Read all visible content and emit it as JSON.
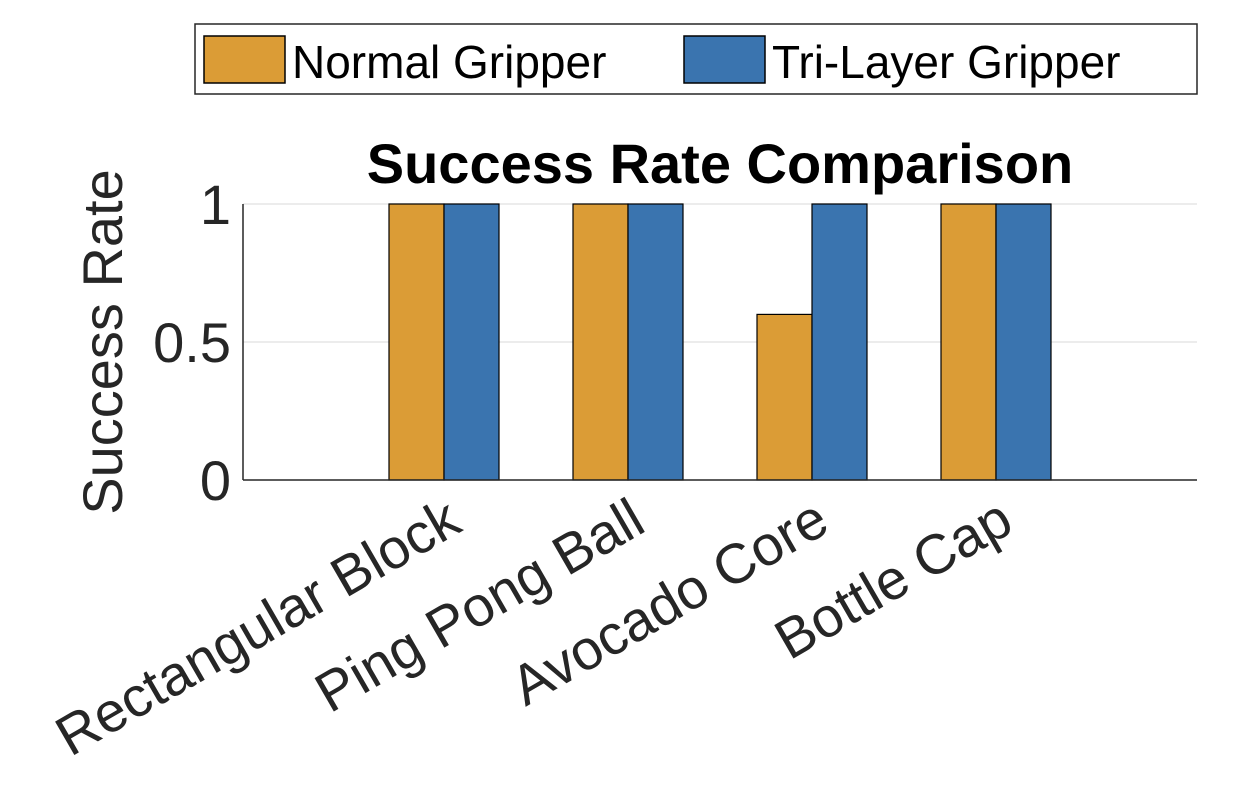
{
  "chart_data": {
    "type": "bar",
    "title": "Success Rate Comparison",
    "xlabel": "",
    "ylabel": "Success Rate",
    "ylim": [
      0,
      1
    ],
    "yticks": [
      "0",
      "0.5",
      "1"
    ],
    "ytick_values": [
      0,
      0.5,
      1
    ],
    "categories": [
      "Rectangular Block",
      "Ping Pong Ball",
      "Avocado Core",
      "Bottle Cap"
    ],
    "series": [
      {
        "name": "Normal Gripper",
        "values": [
          1,
          1,
          0.6,
          1
        ],
        "color": "#DB9C36"
      },
      {
        "name": "Tri-Layer Gripper",
        "values": [
          1,
          1,
          1,
          1
        ],
        "color": "#3A74AF"
      }
    ],
    "grid": "horizontal",
    "legend_position": "top-right"
  }
}
